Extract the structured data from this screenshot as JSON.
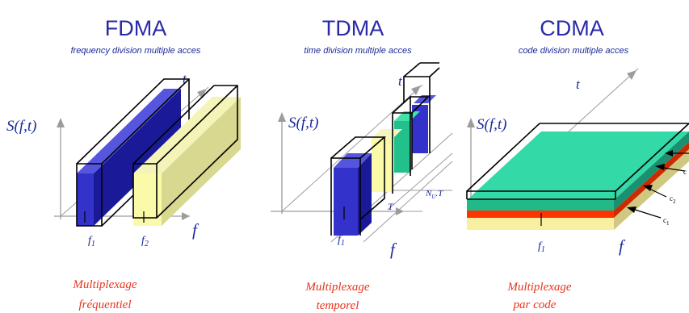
{
  "panels": [
    {
      "title": "FDMA",
      "subtitle": "frequency division multiple acces",
      "s_label": "S(f,t)",
      "t_label": "t",
      "f_label": "f",
      "caption_line1": "Multiplexage",
      "caption_line2": "fréquentiel",
      "f1": "f",
      "f1_sub": "1",
      "f2": "f",
      "f2_sub": "2"
    },
    {
      "title": "TDMA",
      "subtitle": "time division multiple acces",
      "s_label": "S(f,t)",
      "t_label": "t",
      "f_label": "f",
      "caption_line1": "Multiplexage",
      "caption_line2": "temporel",
      "f1": "f",
      "f1_sub": "1",
      "T_label": "T",
      "NuT_label": "N",
      "NuT_sub": "U",
      "NuT_suffix": ".T"
    },
    {
      "title": "CDMA",
      "subtitle": "code division multiple acces",
      "s_label": "S(f,t)",
      "t_label": "t",
      "f_label": "f",
      "caption_line1": "Multiplexage",
      "caption_line2": "par code",
      "f1": "f",
      "f1_sub": "1",
      "c1": "c",
      "c1_sub": "1",
      "c2": "c",
      "c2_sub": "2",
      "c3": "c"
    }
  ],
  "colors": {
    "title": "#2a2aa8",
    "caption": "#e8341c",
    "blue_front": "#3333cc",
    "blue_side": "#1a1a88",
    "yellow_front": "#fafaa8",
    "yellow_side": "#c8c870",
    "green_top": "#33d9a6",
    "green_front": "#22b888",
    "red": "#ff3300",
    "yellow_base": "#f8f0a0"
  }
}
